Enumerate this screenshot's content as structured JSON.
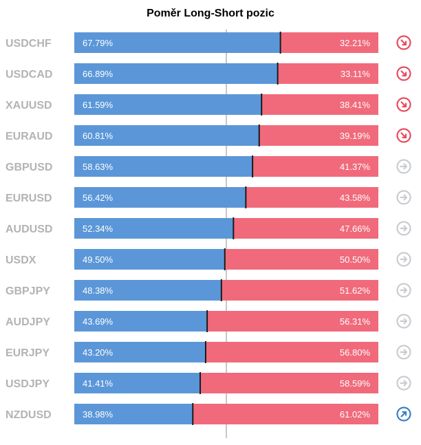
{
  "title": "Poměr Long-Short pozic",
  "colors": {
    "long": "#5b97d8",
    "short": "#f06a7b",
    "label": "#b3b3b3",
    "icon_down": "#e94a5f",
    "icon_neutral": "#c9ccd1",
    "icon_up": "#3c7fc4"
  },
  "chart_data": {
    "type": "bar",
    "stacked": true,
    "orientation": "horizontal",
    "title": "Poměr Long-Short pozic",
    "categories": [
      "USDCHF",
      "USDCAD",
      "XAUUSD",
      "EURAUD",
      "GBPUSD",
      "EURUSD",
      "AUDUSD",
      "USDX",
      "GBPJPY",
      "AUDJPY",
      "EURJPY",
      "USDJPY",
      "NZDUSD"
    ],
    "series": [
      {
        "values": [
          67.79,
          66.89,
          61.59,
          60.81,
          58.63,
          56.42,
          52.34,
          49.5,
          48.38,
          43.69,
          43.2,
          41.41,
          38.98
        ]
      },
      {
        "values": [
          32.21,
          33.11,
          38.41,
          39.19,
          41.37,
          43.58,
          47.66,
          50.5,
          51.62,
          56.31,
          56.8,
          58.59,
          61.02
        ]
      }
    ],
    "long_labels": [
      "67.79%",
      "66.89%",
      "61.59%",
      "60.81%",
      "58.63%",
      "56.42%",
      "52.34%",
      "49.50%",
      "48.38%",
      "43.69%",
      "43.20%",
      "41.41%",
      "38.98%"
    ],
    "short_labels": [
      "32.21%",
      "33.11%",
      "38.41%",
      "39.19%",
      "41.37%",
      "43.58%",
      "47.66%",
      "50.50%",
      "51.62%",
      "56.31%",
      "56.80%",
      "58.59%",
      "61.02%"
    ],
    "signals": [
      "arrow-down-right-icon",
      "arrow-down-right-icon",
      "arrow-down-right-icon",
      "arrow-down-right-icon",
      "arrow-right-icon",
      "arrow-right-icon",
      "arrow-right-icon",
      "arrow-right-icon",
      "arrow-right-icon",
      "arrow-right-icon",
      "arrow-right-icon",
      "arrow-right-icon",
      "arrow-up-right-icon"
    ],
    "xlim": [
      0,
      100
    ],
    "midline": 50
  }
}
